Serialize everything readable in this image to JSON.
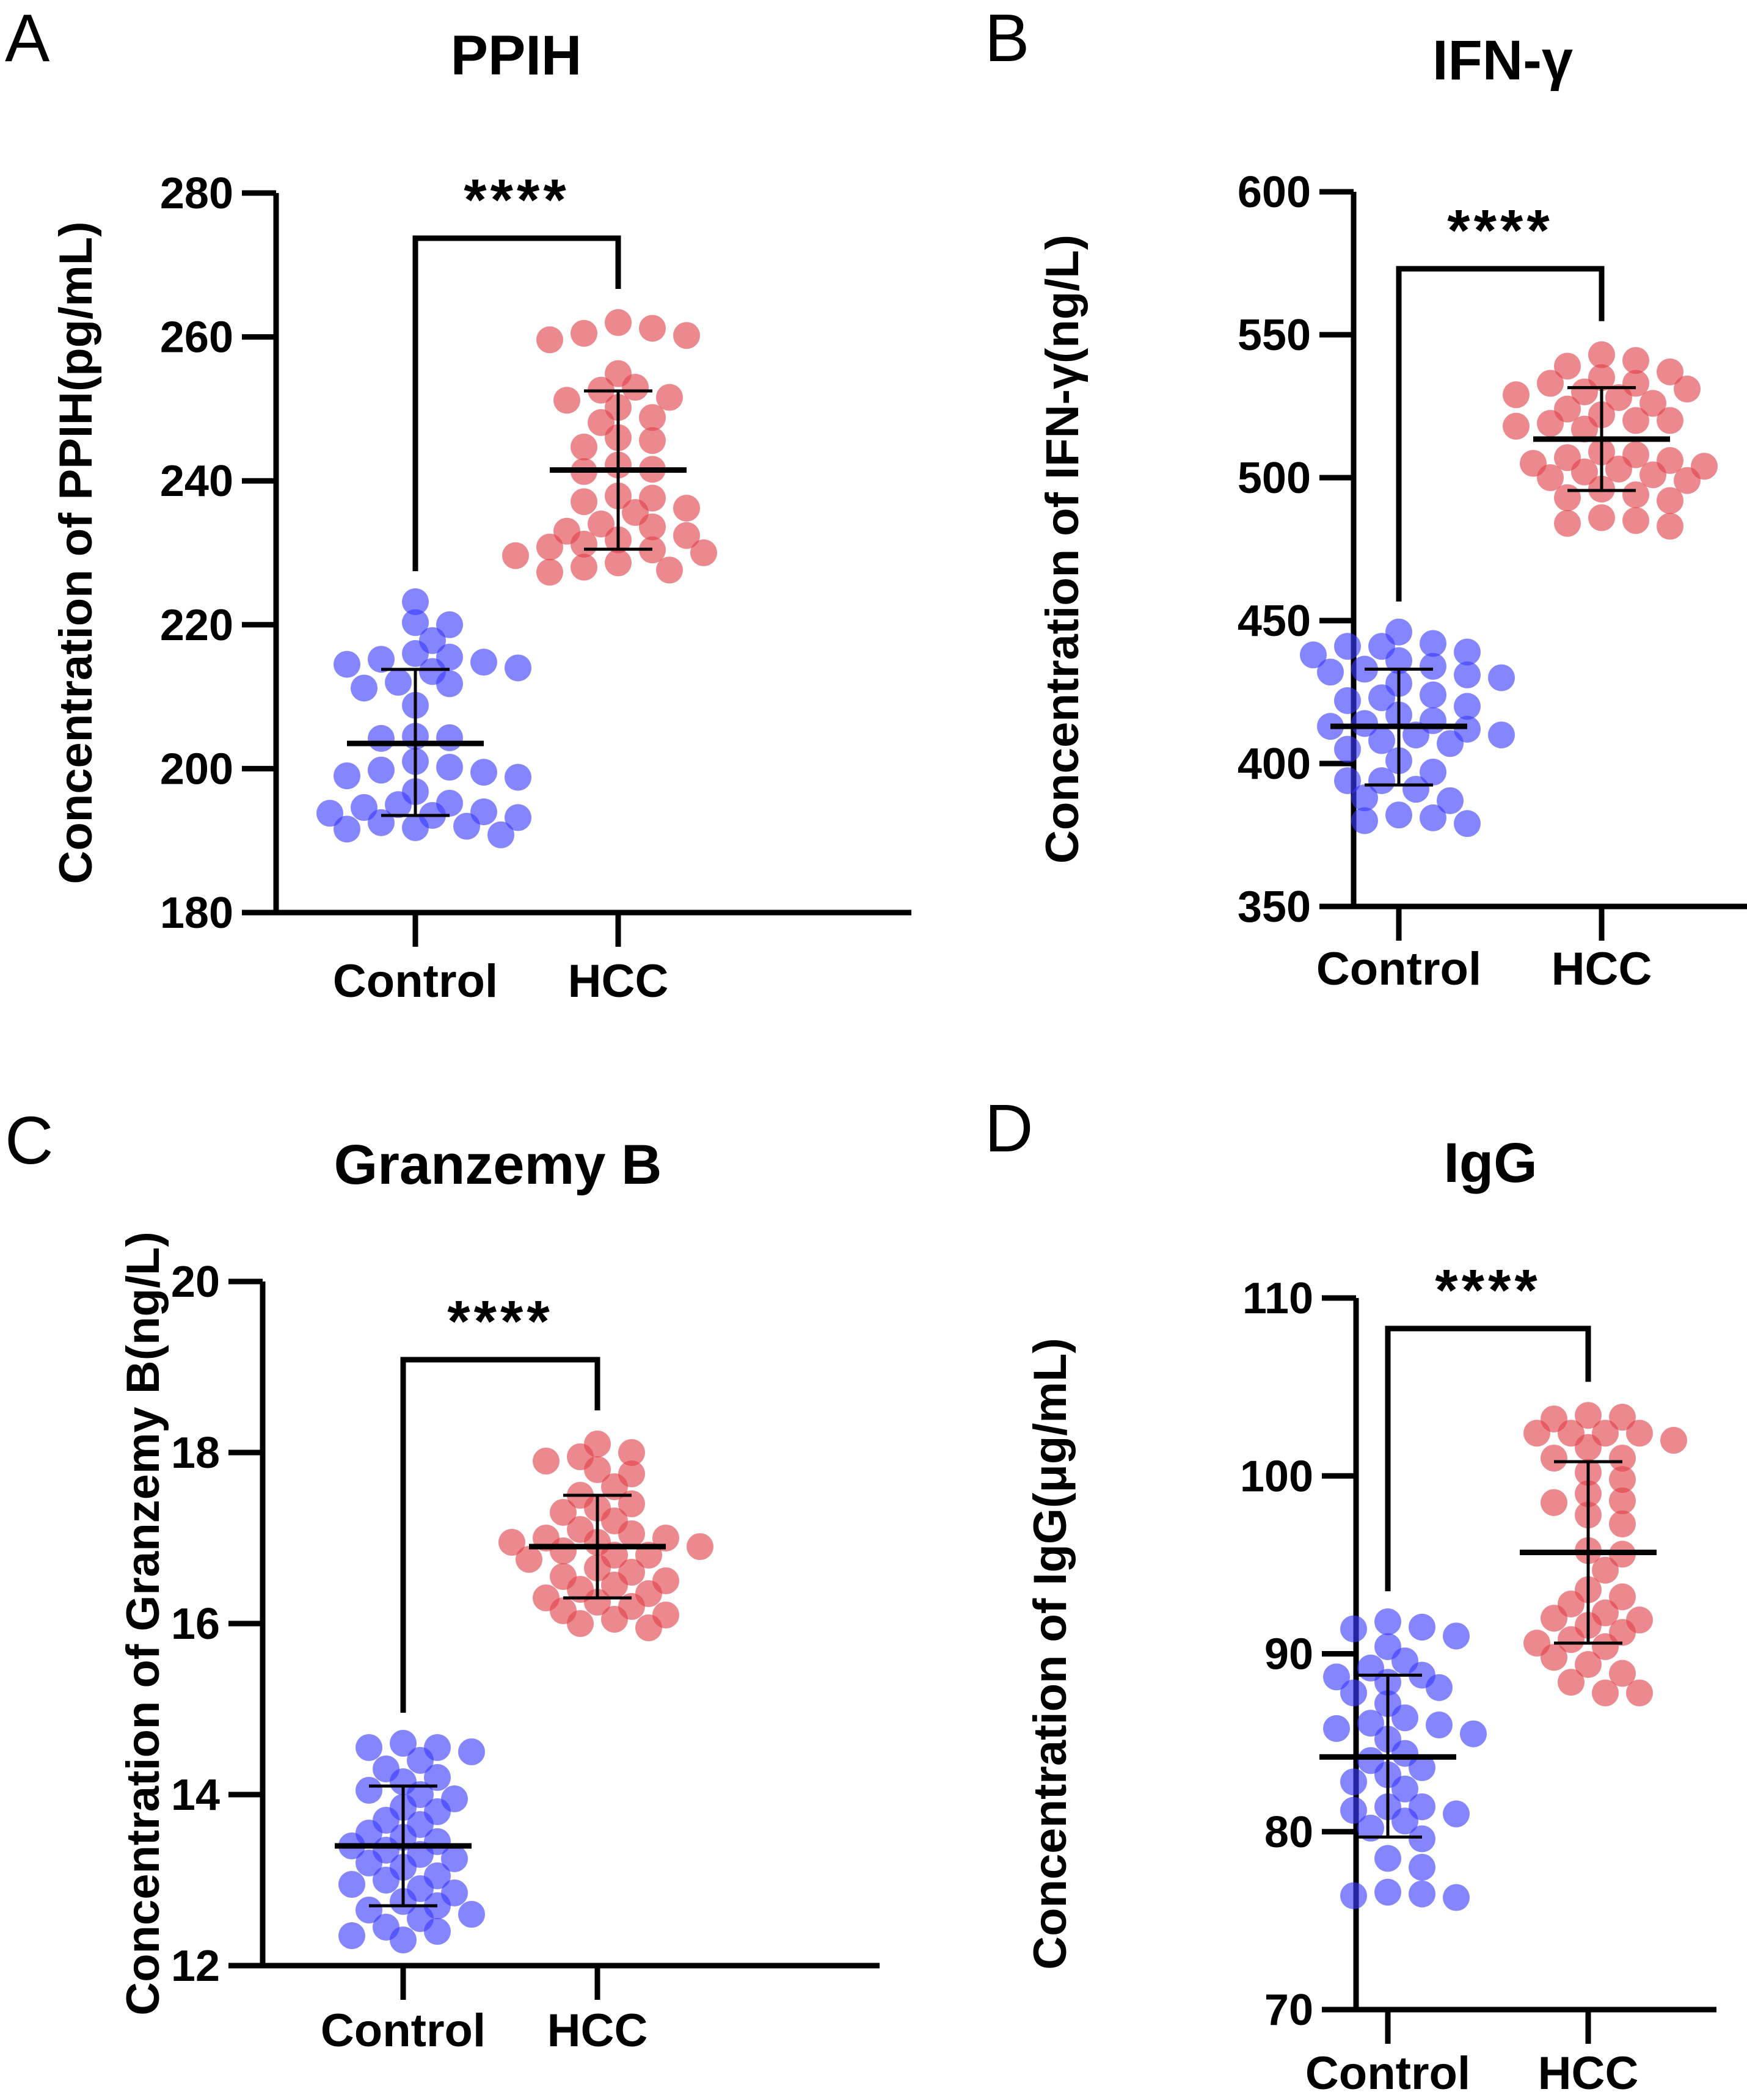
{
  "figure": {
    "panels_count": 4
  },
  "chart_data": [
    {
      "type": "scatter",
      "panel_letter": "A",
      "title": "PPIH",
      "ylabel": "Concentration of PPIH(pg/mL)",
      "xlabel": "",
      "categories": [
        "Control",
        "HCC"
      ],
      "ylim": [
        180,
        280
      ],
      "yticks": [
        180,
        200,
        220,
        240,
        260,
        280
      ],
      "grid": false,
      "significance": "****",
      "series": [
        {
          "name": "Control",
          "color": "#3a3aff",
          "mean": 203.5,
          "sd_low": 193.5,
          "sd_high": 213.8,
          "values": [
            223.2,
            220.3,
            220.0,
            217.8,
            216.0,
            215.5,
            215.2,
            214.8,
            214.5,
            214.0,
            213.5,
            212.0,
            211.8,
            211.2,
            208.8,
            204.5,
            204.3,
            204.2,
            201.0,
            200.2,
            199.8,
            199.5,
            199.0,
            198.8,
            196.8,
            195.2,
            195.0,
            194.6,
            194.0,
            193.8,
            193.5,
            193.2,
            192.5,
            192.0,
            191.8,
            191.6,
            190.8
          ]
        },
        {
          "name": "HCC",
          "color": "#e04048",
          "mean": 241.5,
          "sd_low": 230.5,
          "sd_high": 252.5,
          "values": [
            262.0,
            261.2,
            260.5,
            260.2,
            259.6,
            254.9,
            253.0,
            252.6,
            251.6,
            251.2,
            250.2,
            248.8,
            248.1,
            246.0,
            245.6,
            244.7,
            242.2,
            241.6,
            241.3,
            237.9,
            237.6,
            237.1,
            236.2,
            235.6,
            234.0,
            233.6,
            233.0,
            232.4,
            231.8,
            231.2,
            230.8,
            230.4,
            230.0,
            229.6,
            228.6,
            228.0,
            227.6,
            227.3
          ]
        }
      ]
    },
    {
      "type": "scatter",
      "panel_letter": "B",
      "title": "IFN-γ",
      "ylabel": "Concentration of IFN-γ(ng/L)",
      "xlabel": "",
      "categories": [
        "Control",
        "HCC"
      ],
      "ylim": [
        350,
        600
      ],
      "yticks": [
        350,
        400,
        450,
        500,
        550,
        600
      ],
      "grid": false,
      "significance": "****",
      "series": [
        {
          "name": "Control",
          "color": "#3a3aff",
          "mean": 413.0,
          "sd_low": 392.5,
          "sd_high": 433.0,
          "values": [
            446,
            441,
            442,
            441,
            439,
            438,
            436,
            434,
            433,
            432,
            431,
            430,
            428,
            424,
            423,
            422,
            420,
            417,
            415,
            414,
            413,
            412,
            410,
            410,
            408,
            407,
            405,
            401,
            397,
            394,
            394,
            391,
            388,
            387,
            382,
            381,
            380,
            379
          ]
        },
        {
          "name": "HCC",
          "color": "#e04048",
          "mean": 513.5,
          "sd_low": 495.5,
          "sd_high": 531.5,
          "values": [
            543,
            541,
            539,
            537,
            535,
            533,
            533,
            531,
            530,
            529,
            528,
            526,
            524,
            522,
            520,
            520,
            519,
            518,
            517,
            509,
            508,
            507,
            506,
            505,
            504,
            503,
            502,
            501,
            500,
            499,
            496,
            494,
            493,
            492,
            486,
            485,
            484,
            483
          ]
        }
      ]
    },
    {
      "type": "scatter",
      "panel_letter": "C",
      "title": "Granzemy B",
      "ylabel": "Concentration of Granzemy B(ng/L)",
      "xlabel": "",
      "categories": [
        "Control",
        "HCC"
      ],
      "ylim": [
        12,
        20
      ],
      "yticks": [
        12,
        14,
        16,
        18,
        20
      ],
      "grid": false,
      "significance": "****",
      "series": [
        {
          "name": "Control",
          "color": "#3a3aff",
          "mean": 13.4,
          "sd_low": 12.7,
          "sd_high": 14.1,
          "values": [
            14.6,
            14.55,
            14.55,
            14.5,
            14.4,
            14.3,
            14.2,
            14.15,
            14.05,
            14.0,
            13.95,
            13.85,
            13.8,
            13.7,
            13.65,
            13.55,
            13.5,
            13.45,
            13.4,
            13.35,
            13.3,
            13.25,
            13.2,
            13.15,
            13.05,
            13.0,
            12.95,
            12.9,
            12.85,
            12.75,
            12.7,
            12.65,
            12.6,
            12.55,
            12.45,
            12.4,
            12.35,
            12.3
          ]
        },
        {
          "name": "HCC",
          "color": "#e04048",
          "mean": 16.9,
          "sd_low": 16.3,
          "sd_high": 17.5,
          "values": [
            18.1,
            18.0,
            17.95,
            17.9,
            17.8,
            17.75,
            17.6,
            17.5,
            17.4,
            17.35,
            17.3,
            17.2,
            17.1,
            17.05,
            17.0,
            17.0,
            16.95,
            16.95,
            16.9,
            16.85,
            16.8,
            16.8,
            16.75,
            16.65,
            16.6,
            16.55,
            16.5,
            16.45,
            16.4,
            16.35,
            16.3,
            16.25,
            16.2,
            16.15,
            16.1,
            16.05,
            16.0,
            15.95
          ]
        }
      ]
    },
    {
      "type": "scatter",
      "panel_letter": "D",
      "title": "IgG",
      "ylabel": "Concentration of IgG(μg/mL)",
      "xlabel": "",
      "categories": [
        "Control",
        "HCC"
      ],
      "ylim": [
        70,
        110
      ],
      "yticks": [
        70,
        80,
        90,
        100,
        110
      ],
      "grid": false,
      "significance": "****",
      "series": [
        {
          "name": "Control",
          "color": "#3a3aff",
          "mean": 84.2,
          "sd_low": 79.7,
          "sd_high": 88.8,
          "values": [
            91.8,
            91.5,
            91.4,
            91.0,
            90.4,
            89.6,
            89.2,
            88.8,
            88.7,
            88.4,
            88.1,
            87.8,
            87.2,
            86.4,
            86.1,
            86.0,
            85.8,
            85.5,
            85.2,
            84.4,
            84.0,
            83.6,
            83.2,
            82.8,
            82.4,
            81.4,
            81.4,
            81.2,
            81.0,
            80.6,
            80.2,
            79.6,
            78.5,
            78.0,
            76.6,
            76.5,
            76.4,
            76.3
          ]
        },
        {
          "name": "HCC",
          "color": "#e04048",
          "mean": 95.7,
          "sd_low": 90.6,
          "sd_high": 100.8,
          "values": [
            103.4,
            103.3,
            103.2,
            102.4,
            102.4,
            102.4,
            102.4,
            102.0,
            101.6,
            101.0,
            101.0,
            100.2,
            99.8,
            99.0,
            98.5,
            98.6,
            97.8,
            97.3,
            95.8,
            95.6,
            94.7,
            93.6,
            93.2,
            92.8,
            92.3,
            92.0,
            91.9,
            91.6,
            91.2,
            90.8,
            90.6,
            90.4,
            89.8,
            89.4,
            88.9,
            88.4,
            87.8,
            87.8
          ]
        }
      ]
    }
  ]
}
